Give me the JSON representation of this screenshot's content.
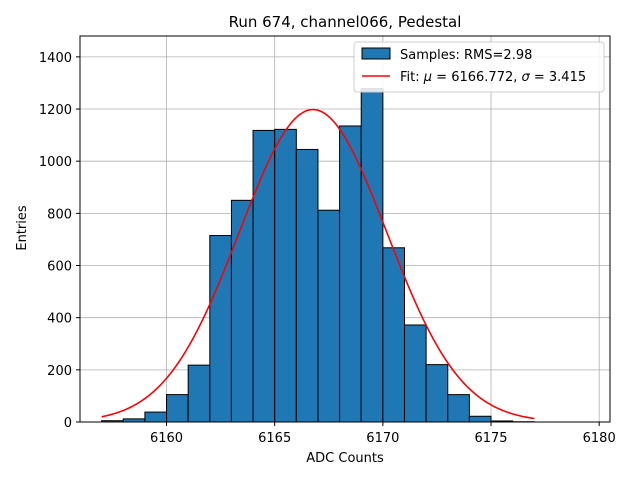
{
  "chart_data": {
    "type": "bar",
    "title": "Run 674, channel066, Pedestal",
    "xlabel": "ADC Counts",
    "ylabel": "Entries",
    "xlim": [
      6156,
      6180.5
    ],
    "ylim": [
      0,
      1480
    ],
    "xticks": [
      6160,
      6165,
      6170,
      6175,
      6180
    ],
    "yticks": [
      0,
      200,
      400,
      600,
      800,
      1000,
      1200,
      1400
    ],
    "grid": true,
    "legend_position": "top-right",
    "bin_width": 1,
    "bins": [
      {
        "left": 6157,
        "count": 5
      },
      {
        "left": 6158,
        "count": 12
      },
      {
        "left": 6159,
        "count": 38
      },
      {
        "left": 6160,
        "count": 105
      },
      {
        "left": 6161,
        "count": 218
      },
      {
        "left": 6162,
        "count": 715
      },
      {
        "left": 6163,
        "count": 850
      },
      {
        "left": 6164,
        "count": 1118
      },
      {
        "left": 6165,
        "count": 1122
      },
      {
        "left": 6166,
        "count": 1045
      },
      {
        "left": 6167,
        "count": 812
      },
      {
        "left": 6168,
        "count": 1135
      },
      {
        "left": 6169,
        "count": 1278
      },
      {
        "left": 6170,
        "count": 668
      },
      {
        "left": 6171,
        "count": 372
      },
      {
        "left": 6172,
        "count": 220
      },
      {
        "left": 6173,
        "count": 105
      },
      {
        "left": 6174,
        "count": 22
      },
      {
        "left": 6175,
        "count": 4
      },
      {
        "left": 6176,
        "count": 1
      }
    ],
    "fit": {
      "mu": 6166.772,
      "sigma": 3.415,
      "amplitude": 1198,
      "x_range": [
        6157,
        6177
      ]
    },
    "bar_color": "#1f77b4",
    "fit_color": "#ff0000",
    "legend": {
      "hist_label": "Samples: RMS=2.98",
      "fit_label_prefix": "Fit: ",
      "fit_mu_sym": "μ",
      "fit_mu_text": " = 6166.772, ",
      "fit_sigma_sym": "σ",
      "fit_sigma_text": " = 3.415"
    }
  }
}
